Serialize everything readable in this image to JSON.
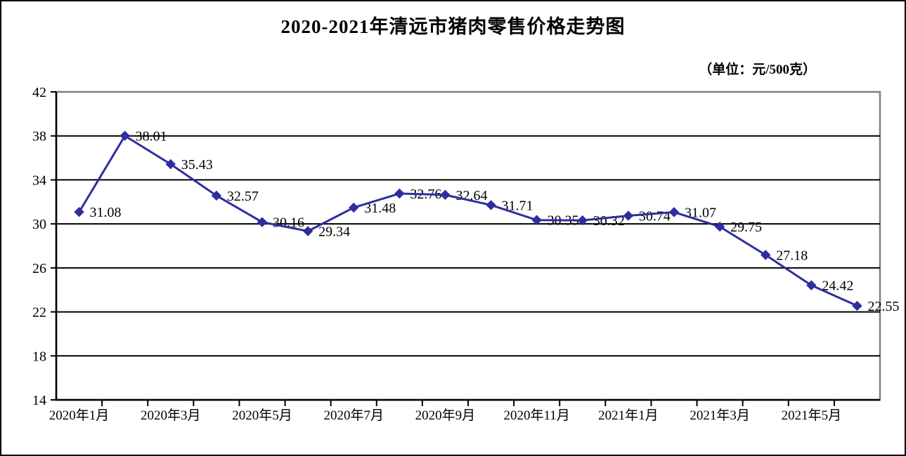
{
  "page": {
    "title": "2020-2021年清远市猪肉零售价格走势图",
    "unit_label": "（单位：元/500克）"
  },
  "chart_data": {
    "type": "line",
    "title": "2020-2021年清远市猪肉零售价格走势图",
    "unit": "元/500克",
    "values": [
      31.08,
      38.01,
      35.43,
      32.57,
      30.16,
      29.34,
      31.48,
      32.76,
      32.64,
      31.71,
      30.35,
      30.32,
      30.74,
      31.07,
      29.75,
      27.18,
      24.42,
      22.55
    ],
    "data_labels": [
      "31.08",
      "38.01",
      "35.43",
      "32.57",
      "30.16",
      "29.34",
      "31.48",
      "32.76",
      "32.64",
      "31.71",
      "30.35",
      "30.32",
      "30.74",
      "31.07",
      "29.75",
      "27.18",
      "24.42",
      "22.55"
    ],
    "x_tick_labels": [
      "2020年1月",
      "2020年3月",
      "2020年5月",
      "2020年7月",
      "2020年9月",
      "2020年11月",
      "2021年1月",
      "2021年3月",
      "2021年5月"
    ],
    "x_label_every": 2,
    "num_points": 18,
    "yticks": [
      14,
      18,
      22,
      26,
      30,
      34,
      38,
      42
    ],
    "ylim": [
      14,
      42
    ],
    "grid": "horizontal-black",
    "legend": "none",
    "colors": {
      "line": "#2E2E9F",
      "marker": "#2E2E9F",
      "gridline": "#000000",
      "axis": "#000000",
      "plot_border": "#808080",
      "text": "#000000",
      "background": "#ffffff"
    }
  }
}
